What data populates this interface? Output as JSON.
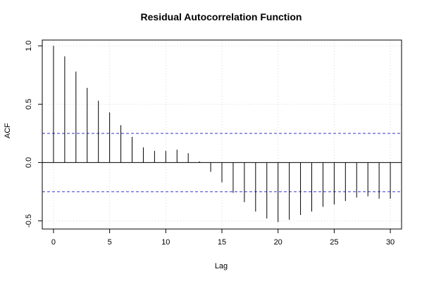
{
  "chart_data": {
    "type": "bar",
    "title": "Residual Autocorrelation Function",
    "xlabel": "Lag",
    "ylabel": "ACF",
    "xlim": [
      -1,
      31
    ],
    "ylim": [
      -0.57,
      1.05
    ],
    "xticks": [
      0,
      5,
      10,
      15,
      20,
      25,
      30
    ],
    "xtick_labels": [
      "0",
      "5",
      "10",
      "15",
      "20",
      "25",
      "30"
    ],
    "yticks": [
      -0.5,
      0.0,
      0.5,
      1.0
    ],
    "ytick_labels": [
      "-0.5",
      "0.0",
      "0.5",
      "1.0"
    ],
    "grid": true,
    "lags": [
      0,
      1,
      2,
      3,
      4,
      5,
      6,
      7,
      8,
      9,
      10,
      11,
      12,
      13,
      14,
      15,
      16,
      17,
      18,
      19,
      20,
      21,
      22,
      23,
      24,
      25,
      26,
      27,
      28,
      29,
      30
    ],
    "values": [
      1.0,
      0.91,
      0.78,
      0.64,
      0.53,
      0.43,
      0.32,
      0.22,
      0.13,
      0.1,
      0.1,
      0.11,
      0.08,
      0.01,
      -0.08,
      -0.17,
      -0.26,
      -0.34,
      -0.42,
      -0.48,
      -0.51,
      -0.49,
      -0.45,
      -0.42,
      -0.38,
      -0.36,
      -0.33,
      -0.3,
      -0.29,
      -0.31,
      -0.31
    ],
    "confidence_bounds": [
      0.25,
      -0.25
    ],
    "colors": {
      "bars": "#000000",
      "confidence": "#3333cc",
      "zero_line": "#000000",
      "grid": "#d9d9d9",
      "frame": "#000000"
    }
  }
}
